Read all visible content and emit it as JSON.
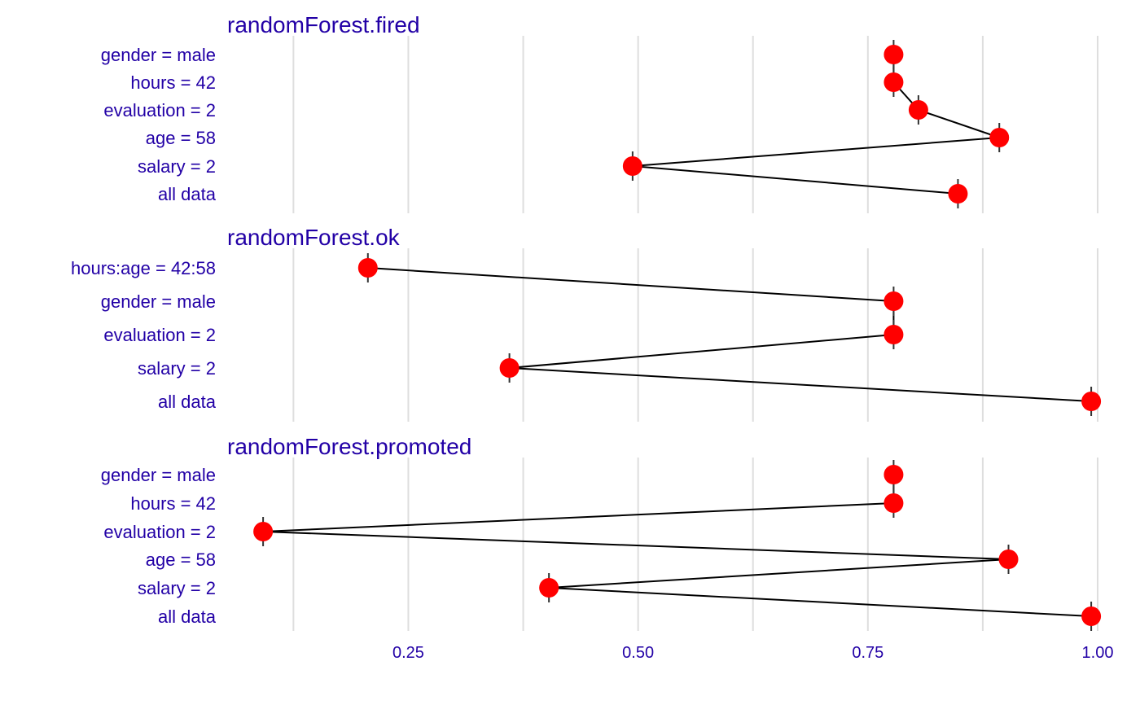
{
  "chart_data": [
    {
      "type": "scatter",
      "title": "randomForest.fired",
      "categories": [
        "gender = male",
        "hours = 42",
        "evaluation = 2",
        "age = 58",
        "salary = 2",
        "all data"
      ],
      "values": [
        0.778,
        0.778,
        0.805,
        0.893,
        0.494,
        0.848
      ],
      "xlim": [
        0.06,
        1.0
      ]
    },
    {
      "type": "scatter",
      "title": "randomForest.ok",
      "categories": [
        "hours:age = 42:58",
        "gender = male",
        "evaluation = 2",
        "salary = 2",
        "all data"
      ],
      "values": [
        0.206,
        0.778,
        0.778,
        0.36,
        0.993
      ],
      "xlim": [
        0.06,
        1.0
      ]
    },
    {
      "type": "scatter",
      "title": "randomForest.promoted",
      "categories": [
        "gender = male",
        "hours = 42",
        "evaluation = 2",
        "age = 58",
        "salary = 2",
        "all data"
      ],
      "values": [
        0.778,
        0.778,
        0.092,
        0.903,
        0.403,
        0.993
      ],
      "xlim": [
        0.06,
        1.0
      ]
    }
  ],
  "x_axis": {
    "ticks": [
      0.25,
      0.5,
      0.75,
      1.0
    ],
    "tick_labels": [
      "0.25",
      "0.50",
      "0.75",
      "1.00"
    ],
    "minor_gridlines": [
      0.125,
      0.375,
      0.625,
      0.875
    ]
  },
  "colors": {
    "point": "#ff0000",
    "connector": "#000000",
    "text": "#2200a6",
    "grid": "#dedede"
  },
  "grid": true
}
